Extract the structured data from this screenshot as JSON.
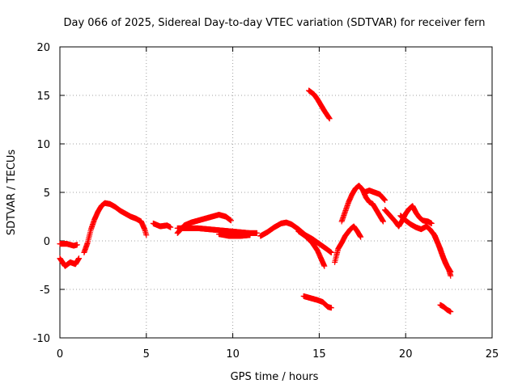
{
  "chart_data": {
    "type": "scatter",
    "title": "Day 066 of 2025, Sidereal Day-to-day VTEC variation (SDTVAR) for receiver fern",
    "xlabel": "GPS time / hours",
    "ylabel": "SDTVAR / TECUs",
    "xlim": [
      0,
      25
    ],
    "ylim": [
      -10,
      20
    ],
    "x_ticks": [
      0,
      5,
      10,
      15,
      20,
      25
    ],
    "y_ticks": [
      -10,
      -5,
      0,
      5,
      10,
      15,
      20
    ],
    "grid": true,
    "marker": "+",
    "series": [
      {
        "name": "SDTVAR",
        "color": "#ff0000",
        "segments": [
          [
            [
              0.0,
              -0.3
            ],
            [
              0.4,
              -0.3
            ],
            [
              0.8,
              -0.5
            ],
            [
              1.0,
              -0.4
            ]
          ],
          [
            [
              0.0,
              -1.8
            ],
            [
              0.3,
              -2.6
            ],
            [
              0.6,
              -2.2
            ],
            [
              0.9,
              -2.4
            ],
            [
              1.1,
              -1.8
            ]
          ],
          [
            [
              1.4,
              -1.2
            ],
            [
              1.6,
              -0.2
            ],
            [
              1.8,
              1.2
            ],
            [
              2.0,
              2.2
            ],
            [
              2.2,
              3.0
            ],
            [
              2.4,
              3.6
            ],
            [
              2.6,
              3.9
            ],
            [
              2.9,
              3.8
            ],
            [
              3.2,
              3.5
            ],
            [
              3.5,
              3.1
            ],
            [
              3.8,
              2.8
            ],
            [
              4.1,
              2.5
            ],
            [
              4.4,
              2.3
            ],
            [
              4.7,
              2.0
            ],
            [
              4.9,
              1.2
            ],
            [
              5.0,
              0.6
            ]
          ],
          [
            [
              5.4,
              1.8
            ],
            [
              5.8,
              1.5
            ],
            [
              6.2,
              1.6
            ],
            [
              6.4,
              1.4
            ]
          ],
          [
            [
              6.8,
              0.8
            ],
            [
              7.2,
              1.6
            ],
            [
              7.6,
              1.9
            ],
            [
              8.0,
              2.1
            ],
            [
              8.4,
              2.3
            ],
            [
              8.8,
              2.5
            ],
            [
              9.2,
              2.7
            ],
            [
              9.6,
              2.5
            ],
            [
              9.9,
              2.1
            ]
          ],
          [
            [
              6.8,
              1.3
            ],
            [
              7.4,
              1.3
            ],
            [
              8.0,
              1.3
            ],
            [
              8.6,
              1.2
            ],
            [
              9.2,
              1.1
            ],
            [
              9.8,
              1.0
            ],
            [
              10.4,
              0.9
            ],
            [
              11.0,
              0.8
            ],
            [
              11.4,
              0.8
            ]
          ],
          [
            [
              9.2,
              0.7
            ],
            [
              9.8,
              0.5
            ],
            [
              10.4,
              0.5
            ],
            [
              11.0,
              0.6
            ]
          ],
          [
            [
              11.6,
              0.5
            ],
            [
              12.0,
              0.9
            ],
            [
              12.4,
              1.4
            ],
            [
              12.8,
              1.8
            ],
            [
              13.1,
              1.9
            ],
            [
              13.4,
              1.7
            ],
            [
              13.8,
              1.2
            ],
            [
              14.2,
              0.6
            ],
            [
              14.6,
              0.2
            ],
            [
              15.0,
              -0.3
            ],
            [
              15.4,
              -0.8
            ],
            [
              15.7,
              -1.2
            ]
          ],
          [
            [
              13.8,
              1.0
            ],
            [
              14.2,
              0.5
            ],
            [
              14.6,
              -0.2
            ],
            [
              14.9,
              -1.0
            ],
            [
              15.1,
              -1.8
            ],
            [
              15.3,
              -2.6
            ]
          ],
          [
            [
              14.4,
              15.5
            ],
            [
              14.7,
              15.1
            ],
            [
              14.9,
              14.6
            ],
            [
              15.1,
              14.0
            ],
            [
              15.3,
              13.4
            ],
            [
              15.6,
              12.6
            ]
          ],
          [
            [
              14.1,
              -5.7
            ],
            [
              14.5,
              -5.9
            ],
            [
              14.9,
              -6.1
            ],
            [
              15.2,
              -6.3
            ],
            [
              15.5,
              -6.8
            ],
            [
              15.7,
              -6.9
            ]
          ],
          [
            [
              15.9,
              -2.2
            ],
            [
              16.0,
              -1.5
            ],
            [
              16.1,
              -0.8
            ],
            [
              16.3,
              -0.2
            ],
            [
              16.5,
              0.5
            ],
            [
              16.8,
              1.2
            ],
            [
              17.0,
              1.5
            ],
            [
              17.2,
              1.0
            ],
            [
              17.4,
              0.4
            ]
          ],
          [
            [
              16.3,
              2.0
            ],
            [
              16.5,
              3.0
            ],
            [
              16.7,
              4.0
            ],
            [
              16.9,
              4.8
            ],
            [
              17.1,
              5.4
            ],
            [
              17.3,
              5.7
            ],
            [
              17.5,
              5.3
            ],
            [
              17.7,
              4.5
            ],
            [
              17.9,
              4.0
            ],
            [
              18.1,
              3.8
            ],
            [
              18.3,
              3.2
            ],
            [
              18.5,
              2.6
            ],
            [
              18.7,
              2.0
            ]
          ],
          [
            [
              17.6,
              5.0
            ],
            [
              17.9,
              5.2
            ],
            [
              18.2,
              5.0
            ],
            [
              18.5,
              4.8
            ],
            [
              18.8,
              4.2
            ]
          ],
          [
            [
              18.8,
              3.2
            ],
            [
              19.1,
              2.6
            ],
            [
              19.4,
              2.0
            ],
            [
              19.6,
              1.5
            ],
            [
              19.8,
              2.1
            ],
            [
              20.0,
              2.8
            ],
            [
              20.2,
              3.3
            ],
            [
              20.4,
              3.6
            ],
            [
              20.6,
              2.9
            ],
            [
              20.8,
              2.4
            ],
            [
              21.0,
              2.1
            ],
            [
              21.3,
              2.0
            ],
            [
              21.5,
              1.8
            ]
          ],
          [
            [
              19.7,
              2.6
            ],
            [
              20.0,
              2.1
            ],
            [
              20.3,
              1.7
            ],
            [
              20.6,
              1.4
            ],
            [
              20.9,
              1.2
            ],
            [
              21.2,
              1.5
            ],
            [
              21.4,
              1.2
            ]
          ],
          [
            [
              21.4,
              1.2
            ],
            [
              21.7,
              0.5
            ],
            [
              21.9,
              -0.4
            ],
            [
              22.1,
              -1.4
            ],
            [
              22.3,
              -2.3
            ],
            [
              22.5,
              -3.0
            ],
            [
              22.6,
              -3.6
            ]
          ],
          [
            [
              21.6,
              0.8
            ],
            [
              21.8,
              0.0
            ],
            [
              22.0,
              -0.8
            ],
            [
              22.2,
              -1.8
            ],
            [
              22.4,
              -2.6
            ],
            [
              22.6,
              -3.2
            ]
          ],
          [
            [
              22.0,
              -6.6
            ],
            [
              22.2,
              -6.8
            ],
            [
              22.4,
              -7.1
            ],
            [
              22.6,
              -7.3
            ]
          ]
        ]
      }
    ]
  }
}
